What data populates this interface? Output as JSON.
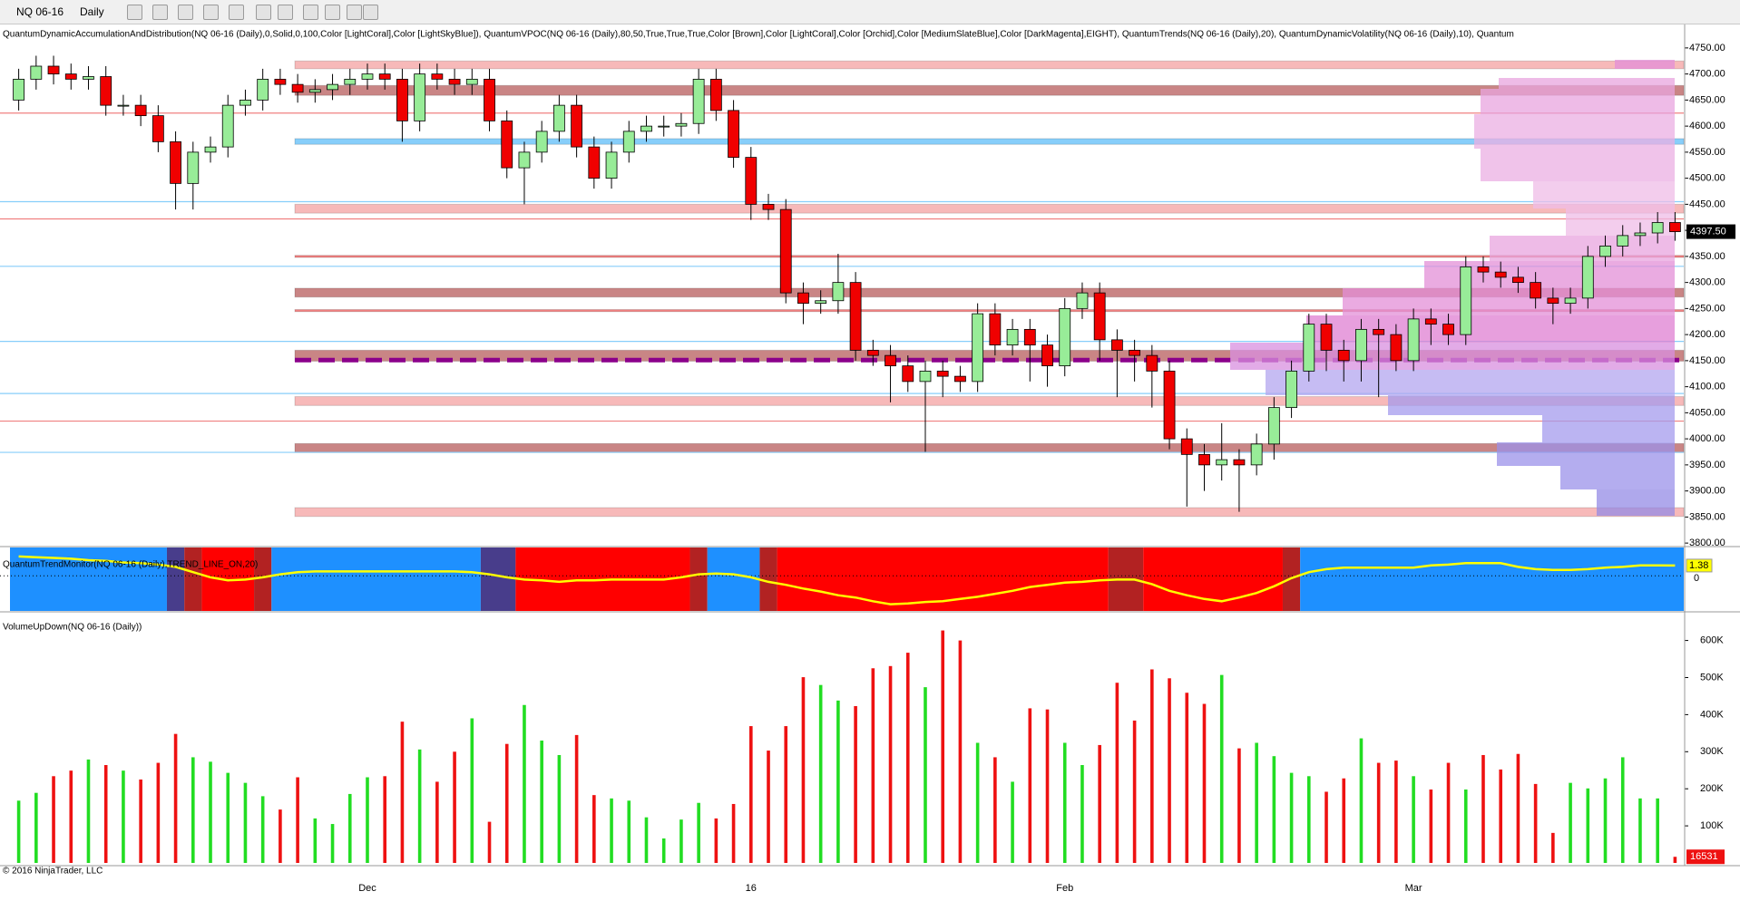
{
  "toolbar": {
    "symbol": "NQ 06-16",
    "interval": "Daily"
  },
  "footer": "© 2016 NinjaTrader, LLC",
  "chart_data": [
    {
      "type": "candlestick",
      "title": "QuantumDynamicAccumulationAndDistribution(NQ 06-16 (Daily),0,Solid,0,100,Color [LightCoral],Color [LightSkyBlue]), QuantumVPOC(NQ 06-16 (Daily),80,50,True,True,True,Color [Brown],Color [LightCoral],Color [Orchid],Color [MediumSlateBlue],Color [DarkMagenta],EIGHT), QuantumTrends(NQ 06-16 (Daily),20), QuantumDynamicVolatility(NQ 06-16 (Daily),10), Quantum",
      "categories": [
        null,
        null,
        null,
        null,
        null,
        null,
        null,
        null,
        null,
        null,
        null,
        null,
        null,
        null,
        null,
        null,
        null,
        null,
        null,
        null,
        "Dec",
        null,
        null,
        null,
        null,
        null,
        null,
        null,
        null,
        null,
        null,
        null,
        null,
        null,
        null,
        null,
        null,
        null,
        null,
        null,
        null,
        null,
        "16",
        null,
        null,
        null,
        null,
        null,
        null,
        null,
        null,
        null,
        null,
        null,
        null,
        null,
        null,
        null,
        null,
        null,
        "Feb",
        null,
        null,
        null,
        null,
        null,
        null,
        null,
        null,
        null,
        null,
        null,
        null,
        null,
        null,
        null,
        null,
        null,
        null,
        null,
        "Mar",
        null,
        null,
        null,
        null,
        null,
        null,
        null,
        null,
        null,
        null,
        null,
        null,
        null,
        null,
        null
      ],
      "open": [
        4650,
        4690,
        4715,
        4700,
        4690,
        4695,
        4640,
        4640,
        4620,
        4570,
        4490,
        4550,
        4560,
        4640,
        4650,
        4690,
        4680,
        4665,
        4670,
        4680,
        4690,
        4700,
        4690,
        4610,
        4700,
        4690,
        4680,
        4690,
        4610,
        4520,
        4550,
        4590,
        4640,
        4560,
        4500,
        4550,
        4590,
        4600,
        4600,
        4605,
        4690,
        4630,
        4540,
        4450,
        4440,
        4280,
        4260,
        4265,
        4300,
        4170,
        4160,
        4140,
        4110,
        4130,
        4120,
        4110,
        4240,
        4180,
        4210,
        4180,
        4140,
        4250,
        4280,
        4190,
        4170,
        4160,
        4130,
        4000,
        3970,
        3950,
        3960,
        3950,
        3990,
        4060,
        4130,
        4220,
        4170,
        4150,
        4210,
        4200,
        4150,
        4230,
        4220,
        4200,
        4330,
        4320,
        4310,
        4300,
        4270,
        4260,
        4270,
        4350,
        4370,
        4390,
        4395,
        4415
      ],
      "high": [
        4710,
        4735,
        4735,
        4720,
        4715,
        4715,
        4660,
        4660,
        4640,
        4590,
        4570,
        4580,
        4660,
        4670,
        4710,
        4710,
        4700,
        4690,
        4700,
        4710,
        4720,
        4720,
        4710,
        4720,
        4720,
        4710,
        4710,
        4710,
        4630,
        4570,
        4610,
        4660,
        4660,
        4580,
        4570,
        4610,
        4620,
        4620,
        4625,
        4710,
        4710,
        4650,
        4560,
        4470,
        4460,
        4300,
        4285,
        4355,
        4320,
        4190,
        4180,
        4160,
        4150,
        4150,
        4140,
        4260,
        4260,
        4230,
        4230,
        4200,
        4270,
        4300,
        4300,
        4210,
        4190,
        4180,
        4150,
        4020,
        3990,
        4030,
        3980,
        4010,
        4080,
        4150,
        4240,
        4240,
        4190,
        4230,
        4230,
        4220,
        4250,
        4250,
        4240,
        4350,
        4350,
        4340,
        4330,
        4320,
        4290,
        4290,
        4370,
        4390,
        4410,
        4415,
        4435,
        4435
      ],
      "low": [
        4630,
        4670,
        4680,
        4670,
        4670,
        4620,
        4620,
        4600,
        4550,
        4440,
        4440,
        4530,
        4540,
        4620,
        4630,
        4660,
        4645,
        4645,
        4650,
        4660,
        4670,
        4670,
        4570,
        4590,
        4670,
        4660,
        4660,
        4590,
        4500,
        4450,
        4530,
        4570,
        4540,
        4480,
        4480,
        4530,
        4570,
        4580,
        4580,
        4585,
        4610,
        4520,
        4420,
        4420,
        4260,
        4220,
        4240,
        4240,
        4150,
        4140,
        4070,
        4090,
        3975,
        4080,
        4090,
        4090,
        4160,
        4160,
        4110,
        4100,
        4120,
        4230,
        4150,
        4080,
        4110,
        4060,
        3980,
        3870,
        3900,
        3920,
        3860,
        3930,
        3960,
        4040,
        4110,
        4130,
        4110,
        4110,
        4080,
        4130,
        4130,
        4180,
        4180,
        4180,
        4300,
        4290,
        4280,
        4250,
        4220,
        4240,
        4250,
        4330,
        4350,
        4370,
        4375,
        4380
      ],
      "close": [
        4690,
        4715,
        4700,
        4690,
        4695,
        4640,
        4640,
        4620,
        4570,
        4490,
        4550,
        4560,
        4640,
        4650,
        4690,
        4680,
        4665,
        4670,
        4680,
        4690,
        4700,
        4690,
        4610,
        4700,
        4690,
        4680,
        4690,
        4610,
        4520,
        4550,
        4590,
        4640,
        4560,
        4500,
        4550,
        4590,
        4600,
        4600,
        4605,
        4690,
        4630,
        4540,
        4450,
        4440,
        4280,
        4260,
        4265,
        4300,
        4170,
        4160,
        4140,
        4110,
        4130,
        4120,
        4110,
        4240,
        4180,
        4210,
        4180,
        4140,
        4250,
        4280,
        4190,
        4170,
        4160,
        4130,
        4000,
        3970,
        3950,
        3960,
        3950,
        3990,
        4060,
        4130,
        4220,
        4170,
        4150,
        4210,
        4200,
        4150,
        4230,
        4220,
        4200,
        4330,
        4320,
        4310,
        4300,
        4270,
        4260,
        4270,
        4350,
        4370,
        4390,
        4395,
        4415,
        4397.5
      ],
      "up_color": "#98ec98",
      "down_color": "#f00000",
      "ylim": [
        3795,
        4795
      ],
      "yticks": [
        {
          "value": 4750,
          "label": "4750.00"
        },
        {
          "value": 4700,
          "label": "4700.00"
        },
        {
          "value": 4650,
          "label": "4650.00"
        },
        {
          "value": 4600,
          "label": "4600.00"
        },
        {
          "value": 4550,
          "label": "4550.00"
        },
        {
          "value": 4500,
          "label": "4500.00"
        },
        {
          "value": 4450,
          "label": "4450.00"
        },
        {
          "value": 4400,
          "label": "4400.00"
        },
        {
          "value": 4350,
          "label": "4350.00"
        },
        {
          "value": 4300,
          "label": "4300.00"
        },
        {
          "value": 4250,
          "label": "4250.00"
        },
        {
          "value": 4200,
          "label": "4200.00"
        },
        {
          "value": 4150,
          "label": "4150.00"
        },
        {
          "value": 4100,
          "label": "4100.00"
        },
        {
          "value": 4050,
          "label": "4050.00"
        },
        {
          "value": 4000,
          "label": "4000.00"
        },
        {
          "value": 3950,
          "label": "3950.00"
        },
        {
          "value": 3900,
          "label": "3900.00"
        },
        {
          "value": 3850,
          "label": "3850.00"
        },
        {
          "value": 3800,
          "label": "3800.00"
        }
      ],
      "bands": [
        {
          "high": 4725,
          "low": 4710,
          "color": "#f7b9b9"
        },
        {
          "high": 4678,
          "low": 4659,
          "color": "#c98585"
        },
        {
          "high": 4576,
          "low": 4565,
          "color": "#87cefa"
        },
        {
          "high": 4450,
          "low": 4433,
          "color": "#f7b9b9"
        },
        {
          "high": 4352,
          "low": 4348,
          "color": "#f08080"
        },
        {
          "high": 4289,
          "low": 4272,
          "color": "#c98585"
        },
        {
          "high": 4248,
          "low": 4244,
          "color": "#f08080"
        },
        {
          "high": 4170,
          "low": 4149,
          "color": "#c98585"
        },
        {
          "high": 4081,
          "low": 4064,
          "color": "#f7b9b9"
        },
        {
          "high": 3991,
          "low": 3974,
          "color": "#c98585"
        },
        {
          "high": 3868,
          "low": 3851,
          "color": "#f7b9b9"
        }
      ],
      "lines": [
        {
          "value": 4625,
          "color": "#f08080"
        },
        {
          "value": 4455,
          "color": "#87cefa"
        },
        {
          "value": 4422,
          "color": "#f08080"
        },
        {
          "value": 4331,
          "color": "#87cefa"
        },
        {
          "value": 4187,
          "color": "#87cefa"
        },
        {
          "value": 4087,
          "color": "#87cefa"
        },
        {
          "value": 4034,
          "color": "#f08080"
        },
        {
          "value": 3974,
          "color": "#87cefa"
        }
      ],
      "vpoc": {
        "value": 4151,
        "color": "#8b008b"
      },
      "last_price": {
        "value": 4397.5,
        "label": "4397.50"
      }
    },
    {
      "type": "trend-monitor",
      "title": "QuantumTrendMonitor(NQ 06-16 (Daily),TREND_LINE_ON,20)",
      "values": [
        2.6,
        2.5,
        2.4,
        2.3,
        2.1,
        2.0,
        1.8,
        1.7,
        1.5,
        1.2,
        0.5,
        -0.2,
        -0.6,
        -0.5,
        -0.2,
        0.2,
        0.5,
        0.6,
        0.6,
        0.6,
        0.6,
        0.6,
        0.6,
        0.6,
        0.6,
        0.6,
        0.5,
        0.2,
        -0.2,
        -0.5,
        -0.6,
        -0.8,
        -0.6,
        -0.6,
        -0.5,
        -0.5,
        -0.5,
        -0.5,
        -0.2,
        0.2,
        0.3,
        0.2,
        -0.2,
        -0.8,
        -1.2,
        -1.7,
        -2.1,
        -2.6,
        -2.9,
        -3.4,
        -3.8,
        -3.7,
        -3.5,
        -3.4,
        -3.1,
        -2.8,
        -2.4,
        -2.0,
        -1.5,
        -1.2,
        -0.9,
        -0.8,
        -0.6,
        -0.5,
        -0.5,
        -1.1,
        -2.0,
        -2.6,
        -3.1,
        -3.4,
        -2.9,
        -2.3,
        -1.4,
        -0.3,
        0.5,
        0.9,
        1.1,
        1.1,
        1.1,
        1.1,
        1.1,
        1.4,
        1.5,
        1.7,
        1.7,
        1.7,
        1.2,
        0.9,
        0.8,
        0.8,
        0.9,
        1.1,
        1.2,
        1.4,
        1.4,
        1.38
      ],
      "color": "#ffff00",
      "segments": [
        {
          "from": 0,
          "to": 8,
          "color": "#1e90ff"
        },
        {
          "from": 9,
          "to": 9,
          "color": "#483d8b"
        },
        {
          "from": 10,
          "to": 10,
          "color": "#b22222"
        },
        {
          "from": 11,
          "to": 13,
          "color": "#ff0000"
        },
        {
          "from": 14,
          "to": 14,
          "color": "#b22222"
        },
        {
          "from": 15,
          "to": 26,
          "color": "#1e90ff"
        },
        {
          "from": 27,
          "to": 28,
          "color": "#483d8b"
        },
        {
          "from": 29,
          "to": 38,
          "color": "#ff0000"
        },
        {
          "from": 39,
          "to": 39,
          "color": "#b22222"
        },
        {
          "from": 40,
          "to": 42,
          "color": "#1e90ff"
        },
        {
          "from": 43,
          "to": 43,
          "color": "#b22222"
        },
        {
          "from": 44,
          "to": 62,
          "color": "#ff0000"
        },
        {
          "from": 63,
          "to": 64,
          "color": "#b22222"
        },
        {
          "from": 65,
          "to": 72,
          "color": "#ff0000"
        },
        {
          "from": 73,
          "to": 73,
          "color": "#b22222"
        },
        {
          "from": 74,
          "to": 95,
          "color": "#1e90ff"
        }
      ],
      "ylim": [
        -4.7,
        3.8
      ],
      "yticks": [
        0
      ]
    },
    {
      "type": "volume",
      "title": "VolumeUpDown(NQ 06-16 (Daily))",
      "values": [
        168000,
        189000,
        234000,
        249000,
        279000,
        264000,
        249000,
        225000,
        270000,
        348000,
        285000,
        273000,
        243000,
        216000,
        180000,
        144000,
        231000,
        120000,
        105000,
        186000,
        231000,
        234000,
        381000,
        306000,
        219000,
        300000,
        390000,
        111000,
        321000,
        426000,
        330000,
        291000,
        345000,
        183000,
        174000,
        168000,
        123000,
        66000,
        117000,
        162000,
        120000,
        159000,
        369000,
        303000,
        369000,
        501000,
        480000,
        438000,
        423000,
        525000,
        531000,
        567000,
        474000,
        627000,
        600000,
        324000,
        285000,
        219000,
        417000,
        414000,
        324000,
        264000,
        318000,
        486000,
        384000,
        522000,
        498000,
        459000,
        429000,
        507000,
        309000,
        324000,
        288000,
        243000,
        234000,
        192000,
        228000,
        336000,
        270000,
        276000,
        234000,
        198000,
        270000,
        198000,
        291000,
        252000,
        294000,
        213000,
        81000,
        216000,
        201000,
        228000,
        285000,
        174000,
        174000,
        16531
      ],
      "up_color": "#22dd22",
      "down_color": "#ee1111",
      "ylim": [
        0,
        665000
      ],
      "yticks": [
        {
          "value": 600000,
          "label": "600K"
        },
        {
          "value": 500000,
          "label": "500K"
        },
        {
          "value": 400000,
          "label": "400K"
        },
        {
          "value": 300000,
          "label": "300K"
        },
        {
          "value": 200000,
          "label": "200K"
        },
        {
          "value": 100000,
          "label": "100K"
        }
      ]
    }
  ]
}
